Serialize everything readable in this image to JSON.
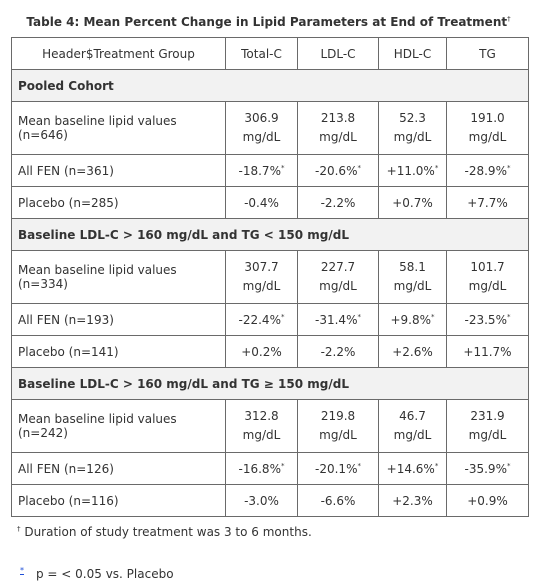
{
  "caption": {
    "text": "Table 4: Mean Percent Change in Lipid Parameters at End of Treatment",
    "dagger": "†"
  },
  "headers": [
    "Header$Treatment Group",
    "Total-C",
    "LDL-C",
    "HDL-C",
    "TG"
  ],
  "sections": [
    {
      "title": "Pooled Cohort",
      "rows": [
        {
          "label": "Mean baseline lipid values (n=646)",
          "cells": [
            "306.9 mg/dL",
            "213.8 mg/dL",
            "52.3 mg/dL",
            "191.0 mg/dL"
          ],
          "marks": [
            "",
            "",
            "",
            ""
          ]
        },
        {
          "label": "All FEN (n=361)",
          "cells": [
            "-18.7%",
            "-20.6%",
            "+11.0%",
            "-28.9%"
          ],
          "marks": [
            "*",
            "*",
            "*",
            "*"
          ]
        },
        {
          "label": "Placebo (n=285)",
          "cells": [
            "-0.4%",
            "-2.2%",
            "+0.7%",
            "+7.7%"
          ],
          "marks": [
            "",
            "",
            "",
            ""
          ]
        }
      ]
    },
    {
      "title": "Baseline LDL-C > 160 mg/dL and TG < 150 mg/dL",
      "rows": [
        {
          "label": "Mean baseline lipid values (n=334)",
          "cells": [
            "307.7 mg/dL",
            "227.7 mg/dL",
            "58.1 mg/dL",
            "101.7 mg/dL"
          ],
          "marks": [
            "",
            "",
            "",
            ""
          ]
        },
        {
          "label": "All FEN (n=193)",
          "cells": [
            "-22.4%",
            "-31.4%",
            "+9.8%",
            "-23.5%"
          ],
          "marks": [
            "*",
            "*",
            "*",
            "*"
          ]
        },
        {
          "label": "Placebo (n=141)",
          "cells": [
            "+0.2%",
            "-2.2%",
            "+2.6%",
            "+11.7%"
          ],
          "marks": [
            "",
            "",
            "",
            ""
          ]
        }
      ]
    },
    {
      "title": "Baseline LDL-C > 160 mg/dL and TG ≥ 150 mg/dL",
      "rows": [
        {
          "label": "Mean baseline lipid values (n=242)",
          "cells": [
            "312.8 mg/dL",
            "219.8 mg/dL",
            "46.7 mg/dL",
            "231.9 mg/dL"
          ],
          "marks": [
            "",
            "",
            "",
            ""
          ]
        },
        {
          "label": "All FEN (n=126)",
          "cells": [
            "-16.8%",
            "-20.1%",
            "+14.6%",
            "-35.9%"
          ],
          "marks": [
            "*",
            "*",
            "*",
            "*"
          ]
        },
        {
          "label": "Placebo (n=116)",
          "cells": [
            "-3.0%",
            "-6.6%",
            "+2.3%",
            "+0.9%"
          ],
          "marks": [
            "",
            "",
            "",
            ""
          ]
        }
      ]
    }
  ],
  "footnotes": {
    "dagger_symbol": "†",
    "dagger_text": "Duration of study treatment was 3 to 6 months.",
    "asterisk_symbol": "*",
    "asterisk_text": "p = < 0.05 vs. Placebo"
  }
}
